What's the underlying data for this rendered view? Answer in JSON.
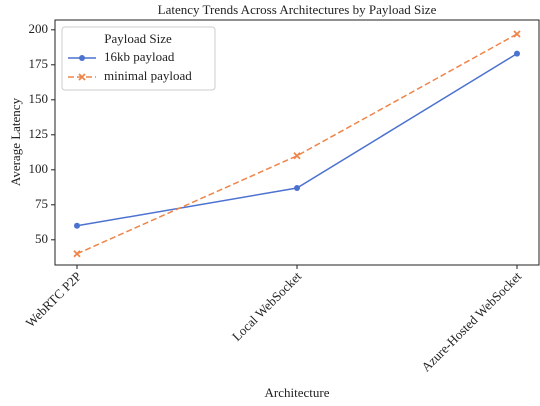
{
  "chart_data": {
    "type": "line",
    "title": "Latency Trends Across Architectures by Payload Size",
    "x_label": "Architecture",
    "y_label": "Average Latency",
    "legend_title": "Payload Size",
    "legend": "upper left",
    "categories": [
      "WebRTC P2P",
      "Local WebSocket",
      "Azure-Hosted WebSocket"
    ],
    "series": [
      {
        "name": "16kb payload",
        "color": "#4c72d0",
        "dash": false,
        "marker": "o",
        "values": [
          60,
          87,
          183
        ]
      },
      {
        "name": "minimal payload",
        "color": "#ee854a",
        "dash": true,
        "marker": "x",
        "values": [
          40,
          110,
          197
        ]
      }
    ],
    "ylim": [
      32,
      207
    ],
    "yticks": [
      50,
      75,
      100,
      125,
      150,
      175,
      200
    ]
  }
}
